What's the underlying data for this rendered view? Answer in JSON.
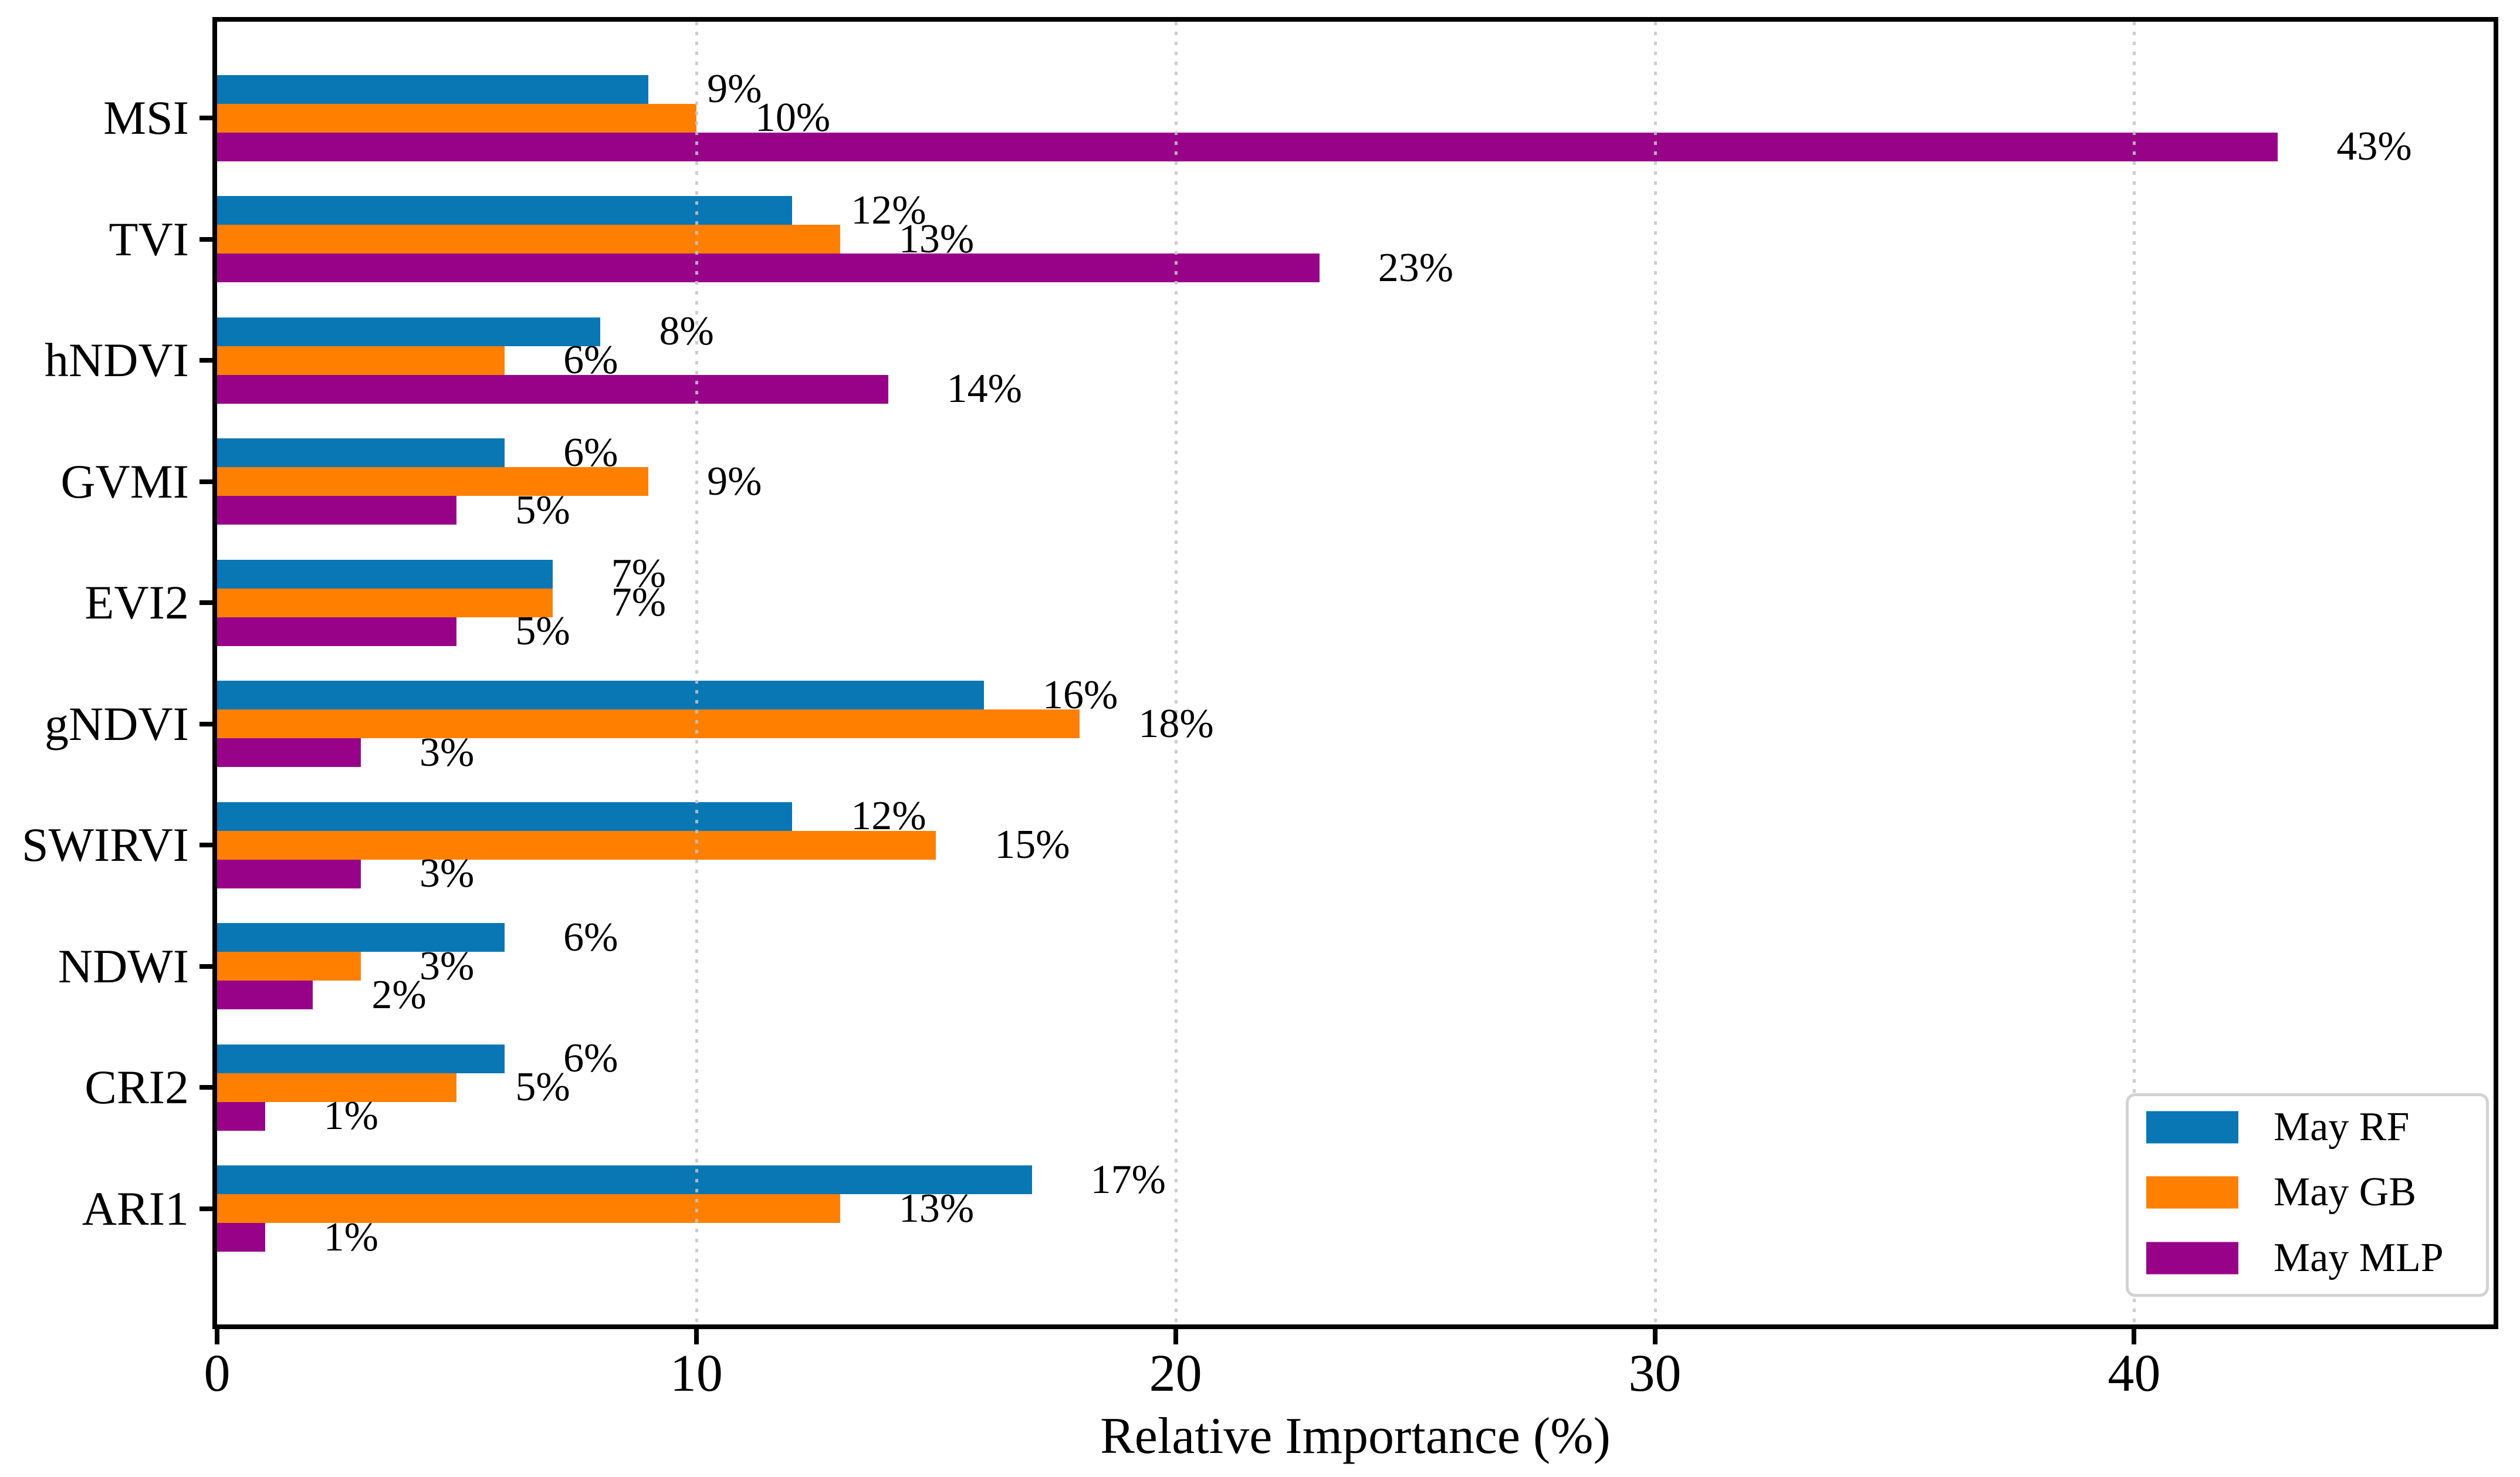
{
  "chart_data": {
    "type": "bar",
    "orientation": "horizontal",
    "title": "",
    "xlabel": "Relative Importance (%)",
    "ylabel": "",
    "categories": [
      "MSI",
      "TVI",
      "hNDVI",
      "GVMI",
      "EVI2",
      "gNDVI",
      "SWIRVI",
      "NDWI",
      "CRI2",
      "ARI1"
    ],
    "series": [
      {
        "name": "May RF",
        "color": "#0877b4",
        "values": [
          9,
          12,
          8,
          6,
          7,
          16,
          12,
          6,
          6,
          17
        ]
      },
      {
        "name": "May GB",
        "color": "#ff8000",
        "values": [
          10,
          13,
          6,
          9,
          7,
          18,
          15,
          3,
          5,
          13
        ]
      },
      {
        "name": "May MLP",
        "color": "#980289",
        "values": [
          43,
          23,
          14,
          5,
          5,
          3,
          3,
          2,
          1,
          1
        ]
      }
    ],
    "value_label_suffix": "%",
    "x_ticks": [
      0,
      10,
      20,
      30,
      40
    ],
    "xlim": [
      0,
      47.5
    ],
    "grid": {
      "axis": "x",
      "style": "dotted",
      "color": "#c8c8c8",
      "on_ticks": [
        10,
        20,
        30,
        40
      ]
    },
    "legend": {
      "position": "lower right",
      "entries": [
        "May RF",
        "May GB",
        "May MLP"
      ]
    },
    "axis_color": "#000000",
    "text_color": "#000000"
  }
}
